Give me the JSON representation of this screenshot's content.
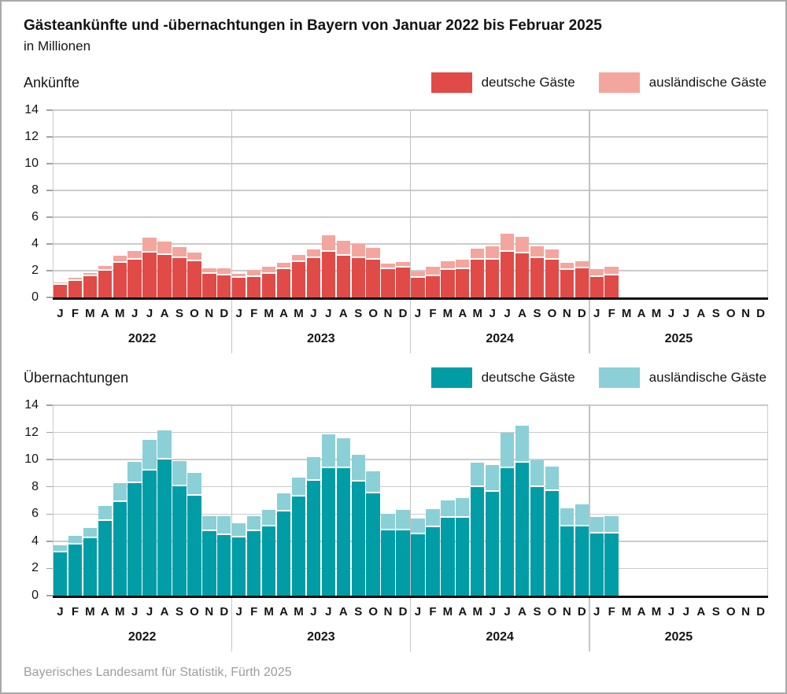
{
  "title": "Gästeankünfte und -übernachtungen in Bayern von Januar 2022 bis Februar 2025",
  "subtitle": "in Millionen",
  "footer": "Bayerisches Landesamt für Statistik, Fürth 2025",
  "colors": {
    "arrivals_domestic": "#e04b48",
    "arrivals_foreign": "#f3a69e",
    "nights_domestic": "#009da6",
    "nights_foreign": "#8bd0d6",
    "gridline": "#cbcbcb",
    "axis": "#111111",
    "footer_text": "#9d9d9d"
  },
  "x_axis": {
    "month_letters": [
      "J",
      "F",
      "M",
      "A",
      "M",
      "J",
      "J",
      "A",
      "S",
      "O",
      "N",
      "D"
    ],
    "years": [
      "2022",
      "2023",
      "2024",
      "2025"
    ]
  },
  "chart_data": [
    {
      "type": "bar",
      "stacked": true,
      "title": "Ankünfte",
      "ylim": [
        0,
        14
      ],
      "ytick_step": 2,
      "x_slots": 48,
      "grid": true,
      "legend_position": "top-right",
      "categories": [
        "2022-01",
        "2022-02",
        "2022-03",
        "2022-04",
        "2022-05",
        "2022-06",
        "2022-07",
        "2022-08",
        "2022-09",
        "2022-10",
        "2022-11",
        "2022-12",
        "2023-01",
        "2023-02",
        "2023-03",
        "2023-04",
        "2023-05",
        "2023-06",
        "2023-07",
        "2023-08",
        "2023-09",
        "2023-10",
        "2023-11",
        "2023-12",
        "2024-01",
        "2024-02",
        "2024-03",
        "2024-04",
        "2024-05",
        "2024-06",
        "2024-07",
        "2024-08",
        "2024-09",
        "2024-10",
        "2024-11",
        "2024-12",
        "2025-01",
        "2025-02"
      ],
      "series": [
        {
          "name": "deutsche Gäste",
          "color": "#e04b48",
          "values": [
            0.95,
            1.25,
            1.6,
            2.0,
            2.6,
            2.85,
            3.35,
            3.2,
            2.95,
            2.7,
            1.75,
            1.65,
            1.45,
            1.55,
            1.75,
            2.1,
            2.65,
            2.95,
            3.4,
            3.1,
            2.95,
            2.85,
            2.1,
            2.25,
            1.5,
            1.6,
            2.05,
            2.1,
            2.85,
            2.85,
            3.4,
            3.3,
            2.95,
            2.85,
            2.05,
            2.2,
            1.55,
            1.65
          ]
        },
        {
          "name": "ausländische Gäste",
          "color": "#f3a69e",
          "values": [
            0.15,
            0.25,
            0.25,
            0.35,
            0.5,
            0.65,
            1.1,
            1.0,
            0.8,
            0.65,
            0.45,
            0.5,
            0.3,
            0.5,
            0.55,
            0.5,
            0.55,
            0.65,
            1.25,
            1.15,
            1.05,
            0.85,
            0.45,
            0.4,
            0.45,
            0.7,
            0.65,
            0.75,
            0.8,
            0.95,
            1.35,
            1.25,
            0.9,
            0.75,
            0.55,
            0.5,
            0.55,
            0.65
          ]
        }
      ]
    },
    {
      "type": "bar",
      "stacked": true,
      "title": "Übernachtungen",
      "ylim": [
        0,
        14
      ],
      "ytick_step": 2,
      "x_slots": 48,
      "grid": true,
      "legend_position": "top-right",
      "categories": [
        "2022-01",
        "2022-02",
        "2022-03",
        "2022-04",
        "2022-05",
        "2022-06",
        "2022-07",
        "2022-08",
        "2022-09",
        "2022-10",
        "2022-11",
        "2022-12",
        "2023-01",
        "2023-02",
        "2023-03",
        "2023-04",
        "2023-05",
        "2023-06",
        "2023-07",
        "2023-08",
        "2023-09",
        "2023-10",
        "2023-11",
        "2023-12",
        "2024-01",
        "2024-02",
        "2024-03",
        "2024-04",
        "2024-05",
        "2024-06",
        "2024-07",
        "2024-08",
        "2024-09",
        "2024-10",
        "2024-11",
        "2024-12",
        "2025-01",
        "2025-02"
      ],
      "series": [
        {
          "name": "deutsche Gäste",
          "color": "#009da6",
          "values": [
            3.2,
            3.75,
            4.2,
            5.5,
            6.9,
            8.3,
            9.2,
            10.0,
            8.05,
            7.35,
            4.75,
            4.45,
            4.3,
            4.75,
            5.1,
            6.2,
            7.3,
            8.45,
            9.35,
            9.4,
            8.4,
            7.5,
            4.8,
            4.8,
            4.5,
            5.05,
            5.75,
            5.75,
            8.0,
            7.65,
            9.4,
            9.8,
            8.0,
            7.7,
            5.1,
            5.1,
            4.6,
            4.55
          ]
        },
        {
          "name": "ausländische Gäste",
          "color": "#8bd0d6",
          "values": [
            0.5,
            0.65,
            0.8,
            1.1,
            1.35,
            1.55,
            2.25,
            2.15,
            1.85,
            1.65,
            1.1,
            1.4,
            1.0,
            1.1,
            1.2,
            1.35,
            1.4,
            1.75,
            2.5,
            2.2,
            1.95,
            1.65,
            1.2,
            1.5,
            1.15,
            1.3,
            1.25,
            1.45,
            1.8,
            1.95,
            2.55,
            2.7,
            1.95,
            1.8,
            1.3,
            1.6,
            1.2,
            1.3
          ]
        }
      ]
    }
  ]
}
